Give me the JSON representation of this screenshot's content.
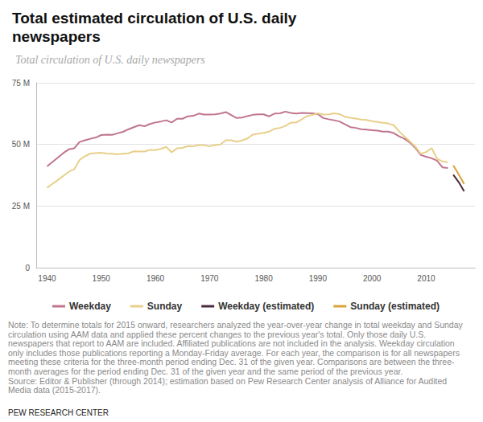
{
  "chart_data": {
    "type": "line",
    "title": "Total estimated circulation of U.S. daily newspapers",
    "subtitle": "Total circulation of U.S. daily newspapers",
    "note": "Note: To determine totals for 2015 onward, researchers analyzed the year-over-year change in total weekday and Sunday circulation using AAM data and applied these percent changes to the previous year's total. Only those daily U.S. newspapers that report to AAM are included. Affiliated publications are not included in the analysis. Weekday circulation only includes those publications reporting a Monday-Friday average. For each year, the comparison is for all newspapers meeting these criteria for the three-month period ending Dec. 31 of the given year. Comparisons are between the three-month averages for the period ending Dec. 31 of the given year and the same period of the previous year.",
    "source": "Source: Editor & Publisher (through 2014); estimation based on Pew Research Center analysis of Alliance for Audited Media data (2015-2017).",
    "credit": "PEW RESEARCH CENTER",
    "xlim": [
      1938,
      2019
    ],
    "xticks": [
      1940,
      1950,
      1960,
      1970,
      1980,
      1990,
      2000,
      2010
    ],
    "ylim": [
      0,
      75
    ],
    "yticks": [
      0,
      {
        "value": 25,
        "label": "25 M"
      },
      {
        "value": 50,
        "label": "50 M"
      },
      {
        "value": 75,
        "label": "75 M"
      }
    ],
    "grid": true,
    "legend": "bottom",
    "series": [
      {
        "name": "Weekday",
        "color": "#c0758f",
        "x": [
          1940,
          1941,
          1942,
          1943,
          1944,
          1945,
          1946,
          1947,
          1948,
          1949,
          1950,
          1951,
          1952,
          1953,
          1954,
          1955,
          1956,
          1957,
          1958,
          1959,
          1960,
          1961,
          1962,
          1963,
          1964,
          1965,
          1966,
          1967,
          1968,
          1969,
          1970,
          1971,
          1972,
          1973,
          1974,
          1975,
          1976,
          1977,
          1978,
          1979,
          1980,
          1981,
          1982,
          1983,
          1984,
          1985,
          1986,
          1987,
          1988,
          1989,
          1990,
          1991,
          1992,
          1993,
          1994,
          1995,
          1996,
          1997,
          1998,
          1999,
          2000,
          2001,
          2002,
          2003,
          2004,
          2005,
          2006,
          2007,
          2008,
          2009,
          2010,
          2011,
          2012,
          2013,
          2014
        ],
        "values": [
          41.1,
          42.9,
          44.7,
          46.5,
          48.0,
          48.4,
          51.0,
          51.7,
          52.3,
          52.8,
          53.8,
          54.0,
          53.9,
          54.5,
          55.1,
          56.1,
          57.0,
          57.8,
          57.4,
          58.3,
          58.9,
          59.3,
          59.8,
          58.9,
          60.4,
          60.4,
          61.4,
          61.6,
          62.5,
          62.1,
          62.1,
          62.2,
          62.5,
          63.1,
          61.9,
          60.7,
          60.9,
          61.5,
          62.0,
          62.2,
          62.2,
          61.4,
          62.5,
          62.6,
          63.3,
          62.8,
          62.5,
          62.8,
          62.7,
          62.6,
          62.3,
          60.7,
          60.2,
          59.8,
          59.3,
          58.2,
          57.0,
          56.7,
          56.2,
          56.0,
          55.8,
          55.6,
          55.2,
          55.2,
          54.6,
          53.3,
          52.3,
          50.7,
          48.6,
          45.7,
          45.0,
          44.4,
          43.4,
          40.7,
          40.4
        ]
      },
      {
        "name": "Sunday",
        "color": "#e8d08a",
        "x": [
          1940,
          1941,
          1942,
          1943,
          1944,
          1945,
          1946,
          1947,
          1948,
          1949,
          1950,
          1951,
          1952,
          1953,
          1954,
          1955,
          1956,
          1957,
          1958,
          1959,
          1960,
          1961,
          1962,
          1963,
          1964,
          1965,
          1966,
          1967,
          1968,
          1969,
          1970,
          1971,
          1972,
          1973,
          1974,
          1975,
          1976,
          1977,
          1978,
          1979,
          1980,
          1981,
          1982,
          1983,
          1984,
          1985,
          1986,
          1987,
          1988,
          1989,
          1990,
          1991,
          1992,
          1993,
          1994,
          1995,
          1996,
          1997,
          1998,
          1999,
          2000,
          2001,
          2002,
          2003,
          2004,
          2005,
          2006,
          2007,
          2008,
          2009,
          2010,
          2011,
          2012,
          2013,
          2014
        ],
        "values": [
          32.4,
          34.0,
          35.6,
          37.2,
          38.9,
          39.9,
          43.7,
          45.2,
          46.3,
          46.5,
          46.6,
          46.3,
          46.2,
          46.0,
          46.2,
          46.4,
          47.2,
          47.1,
          47.1,
          47.8,
          47.7,
          48.2,
          49.0,
          46.8,
          48.4,
          48.6,
          49.3,
          49.2,
          49.7,
          49.7,
          49.2,
          49.7,
          50.0,
          51.7,
          51.7,
          51.1,
          51.6,
          52.4,
          54.0,
          54.4,
          54.7,
          55.2,
          56.3,
          56.7,
          57.5,
          58.8,
          58.9,
          60.1,
          61.5,
          62.0,
          62.6,
          62.1,
          62.2,
          62.6,
          62.3,
          61.2,
          60.8,
          60.5,
          60.1,
          59.9,
          59.4,
          59.1,
          58.8,
          58.5,
          57.8,
          55.3,
          53.2,
          51.2,
          49.1,
          46.2,
          46.9,
          48.5,
          44.2,
          43.1,
          42.8
        ]
      },
      {
        "name": "Weekday (estimated)",
        "color": "#4a2a3c",
        "x": [
          2015,
          2016,
          2017
        ],
        "values": [
          37.7,
          34.7,
          31.0
        ]
      },
      {
        "name": "Sunday (estimated)",
        "color": "#d9a33a",
        "x": [
          2015,
          2016,
          2017
        ],
        "values": [
          41.5,
          37.8,
          34.0
        ]
      }
    ]
  }
}
